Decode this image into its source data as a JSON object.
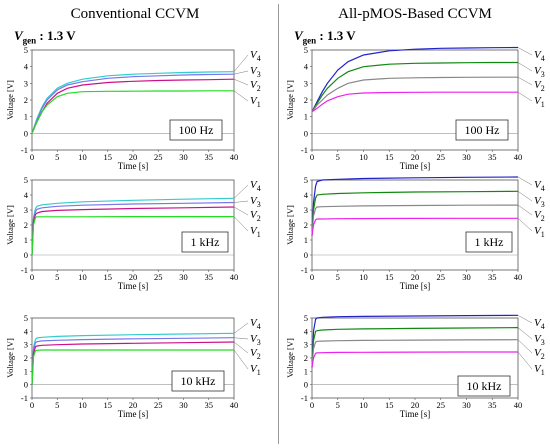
{
  "columns": [
    {
      "title": "Conventional CCVM",
      "vgen_label": "V",
      "vgen_sub": "gen",
      "vgen_value": ": 1.3 V"
    },
    {
      "title": "All-pMOS-Based CCVM",
      "vgen_label": "V",
      "vgen_sub": "gen",
      "vgen_value": ": 1.3 V"
    }
  ],
  "colors": {
    "V1": "#22dd22",
    "V2": "#cc1188",
    "V3": "#7777ee",
    "V4": "#33cccc",
    "V1_right": "#ee22ee",
    "V2_right": "#888888",
    "V3_right": "#118811",
    "V4_right": "#2222cc"
  },
  "chart_data": [
    {
      "type": "line",
      "panel": "conventional-100hz",
      "annotation": "100 Hz",
      "xlabel": "Time [s]",
      "ylabel": "Voltage [V]",
      "xlim": [
        0,
        40
      ],
      "ylim": [
        -1,
        5
      ],
      "xticks": [
        0,
        5,
        10,
        15,
        20,
        25,
        30,
        35,
        40
      ],
      "yticks": [
        -1,
        0,
        1,
        2,
        3,
        4,
        5
      ],
      "series": [
        {
          "name": "V4",
          "x": [
            0,
            1,
            2,
            3,
            5,
            7,
            10,
            15,
            20,
            25,
            30,
            35,
            40
          ],
          "y": [
            0,
            0.9,
            1.6,
            2.1,
            2.7,
            3.0,
            3.25,
            3.45,
            3.55,
            3.6,
            3.65,
            3.68,
            3.7
          ]
        },
        {
          "name": "V3",
          "x": [
            0,
            1,
            2,
            3,
            5,
            7,
            10,
            15,
            20,
            25,
            30,
            35,
            40
          ],
          "y": [
            0,
            0.8,
            1.5,
            2.0,
            2.6,
            2.9,
            3.1,
            3.3,
            3.4,
            3.45,
            3.5,
            3.53,
            3.55
          ]
        },
        {
          "name": "V2",
          "x": [
            0,
            1,
            2,
            3,
            5,
            7,
            10,
            15,
            20,
            25,
            30,
            35,
            40
          ],
          "y": [
            0,
            0.7,
            1.3,
            1.8,
            2.4,
            2.7,
            2.9,
            3.05,
            3.12,
            3.17,
            3.2,
            3.22,
            3.25
          ]
        },
        {
          "name": "V1",
          "x": [
            0,
            1,
            2,
            3,
            5,
            7,
            10,
            15,
            20,
            25,
            30,
            35,
            40
          ],
          "y": [
            0,
            0.7,
            1.3,
            1.7,
            2.2,
            2.4,
            2.5,
            2.52,
            2.53,
            2.54,
            2.54,
            2.55,
            2.55
          ]
        }
      ],
      "legend": [
        "V4",
        "V3",
        "V2",
        "V1"
      ]
    },
    {
      "type": "line",
      "panel": "conventional-1khz",
      "annotation": "1 kHz",
      "xlabel": "Time [s]",
      "ylabel": "Voltage [V]",
      "xlim": [
        0,
        40
      ],
      "ylim": [
        -1,
        5
      ],
      "xticks": [
        0,
        5,
        10,
        15,
        20,
        25,
        30,
        35,
        40
      ],
      "yticks": [
        -1,
        0,
        1,
        2,
        3,
        4,
        5
      ],
      "series": [
        {
          "name": "V4",
          "x": [
            0,
            0.3,
            0.7,
            1,
            2,
            5,
            10,
            20,
            30,
            40
          ],
          "y": [
            0,
            2.5,
            3.1,
            3.25,
            3.35,
            3.45,
            3.55,
            3.65,
            3.72,
            3.78
          ]
        },
        {
          "name": "V3",
          "x": [
            0,
            0.3,
            0.7,
            1,
            2,
            5,
            10,
            20,
            30,
            40
          ],
          "y": [
            0,
            2.4,
            2.9,
            3.05,
            3.15,
            3.25,
            3.32,
            3.4,
            3.45,
            3.5
          ]
        },
        {
          "name": "V2",
          "x": [
            0,
            0.3,
            0.7,
            1,
            2,
            5,
            10,
            20,
            30,
            40
          ],
          "y": [
            0,
            2.2,
            2.7,
            2.8,
            2.9,
            2.97,
            3.03,
            3.1,
            3.15,
            3.2
          ]
        },
        {
          "name": "V1",
          "x": [
            0,
            0.3,
            0.7,
            1,
            2,
            5,
            10,
            20,
            30,
            40
          ],
          "y": [
            0,
            2.0,
            2.5,
            2.55,
            2.55,
            2.55,
            2.55,
            2.56,
            2.56,
            2.56
          ]
        }
      ],
      "legend": [
        "V4",
        "V3",
        "V2",
        "V1"
      ]
    },
    {
      "type": "line",
      "panel": "conventional-10khz",
      "annotation": "10 kHz",
      "xlabel": "Time [s]",
      "ylabel": "Voltage [V]",
      "xlim": [
        0,
        40
      ],
      "ylim": [
        -1,
        5
      ],
      "xticks": [
        0,
        5,
        10,
        15,
        20,
        25,
        30,
        35,
        40
      ],
      "yticks": [
        -1,
        0,
        1,
        2,
        3,
        4,
        5
      ],
      "series": [
        {
          "name": "V4",
          "x": [
            0,
            0.3,
            0.7,
            1,
            2,
            5,
            10,
            20,
            30,
            40
          ],
          "y": [
            0,
            2.8,
            3.4,
            3.5,
            3.55,
            3.62,
            3.68,
            3.75,
            3.8,
            3.85
          ]
        },
        {
          "name": "V3",
          "x": [
            0,
            0.3,
            0.7,
            1,
            2,
            5,
            10,
            20,
            30,
            40
          ],
          "y": [
            0,
            2.6,
            3.15,
            3.22,
            3.28,
            3.33,
            3.38,
            3.44,
            3.48,
            3.52
          ]
        },
        {
          "name": "V2",
          "x": [
            0,
            0.3,
            0.7,
            1,
            2,
            5,
            10,
            20,
            30,
            40
          ],
          "y": [
            0,
            2.3,
            2.85,
            2.9,
            2.95,
            3.0,
            3.05,
            3.1,
            3.15,
            3.2
          ]
        },
        {
          "name": "V1",
          "x": [
            0,
            0.3,
            0.7,
            1,
            2,
            5,
            10,
            20,
            30,
            40
          ],
          "y": [
            0,
            2.1,
            2.55,
            2.58,
            2.6,
            2.6,
            2.6,
            2.6,
            2.6,
            2.6
          ]
        }
      ],
      "legend": [
        "V4",
        "V3",
        "V2",
        "V1"
      ]
    },
    {
      "type": "line",
      "panel": "all-pmos-100hz",
      "annotation": "100 Hz",
      "xlabel": "Time [s]",
      "ylabel": "Voltage [V]",
      "xlim": [
        0,
        40
      ],
      "ylim": [
        -1,
        5
      ],
      "xticks": [
        0,
        5,
        10,
        15,
        20,
        25,
        30,
        35,
        40
      ],
      "yticks": [
        -1,
        0,
        1,
        2,
        3,
        4,
        5
      ],
      "series": [
        {
          "name": "V4",
          "x": [
            0,
            1,
            2,
            3,
            5,
            7,
            10,
            15,
            20,
            25,
            30,
            35,
            40
          ],
          "y": [
            1.3,
            1.9,
            2.5,
            3.0,
            3.8,
            4.3,
            4.7,
            4.95,
            5.05,
            5.1,
            5.12,
            5.14,
            5.15
          ]
        },
        {
          "name": "V3",
          "x": [
            0,
            1,
            2,
            3,
            5,
            7,
            10,
            15,
            20,
            25,
            30,
            35,
            40
          ],
          "y": [
            1.3,
            1.8,
            2.3,
            2.7,
            3.3,
            3.7,
            4.0,
            4.15,
            4.2,
            4.22,
            4.24,
            4.25,
            4.25
          ]
        },
        {
          "name": "V2",
          "x": [
            0,
            1,
            2,
            3,
            5,
            7,
            10,
            15,
            20,
            25,
            30,
            35,
            40
          ],
          "y": [
            1.3,
            1.7,
            2.0,
            2.3,
            2.7,
            3.0,
            3.2,
            3.3,
            3.33,
            3.35,
            3.36,
            3.37,
            3.37
          ]
        },
        {
          "name": "V1",
          "x": [
            0,
            1,
            2,
            3,
            5,
            7,
            10,
            15,
            20,
            25,
            30,
            35,
            40
          ],
          "y": [
            1.3,
            1.5,
            1.75,
            1.95,
            2.2,
            2.35,
            2.42,
            2.45,
            2.46,
            2.47,
            2.47,
            2.47,
            2.47
          ]
        }
      ],
      "legend": [
        "V4",
        "V3",
        "V2",
        "V1"
      ]
    },
    {
      "type": "line",
      "panel": "all-pmos-1khz",
      "annotation": "1 kHz",
      "xlabel": "Time [s]",
      "ylabel": "Voltage [V]",
      "xlim": [
        0,
        40
      ],
      "ylim": [
        -1,
        5
      ],
      "xticks": [
        0,
        5,
        10,
        15,
        20,
        25,
        30,
        35,
        40
      ],
      "yticks": [
        -1,
        0,
        1,
        2,
        3,
        4,
        5
      ],
      "series": [
        {
          "name": "V4",
          "x": [
            0,
            0.3,
            0.7,
            1,
            2,
            5,
            10,
            20,
            30,
            40
          ],
          "y": [
            1.3,
            3.5,
            4.6,
            4.9,
            5.0,
            5.05,
            5.1,
            5.15,
            5.18,
            5.2
          ]
        },
        {
          "name": "V3",
          "x": [
            0,
            0.3,
            0.7,
            1,
            2,
            5,
            10,
            20,
            30,
            40
          ],
          "y": [
            1.3,
            3.0,
            3.8,
            4.0,
            4.05,
            4.1,
            4.15,
            4.2,
            4.22,
            4.25
          ]
        },
        {
          "name": "V2",
          "x": [
            0,
            0.3,
            0.7,
            1,
            2,
            5,
            10,
            20,
            30,
            40
          ],
          "y": [
            1.3,
            2.6,
            3.1,
            3.2,
            3.22,
            3.25,
            3.27,
            3.3,
            3.32,
            3.33
          ]
        },
        {
          "name": "V1",
          "x": [
            0,
            0.3,
            0.7,
            1,
            2,
            5,
            10,
            20,
            30,
            40
          ],
          "y": [
            1.3,
            2.0,
            2.35,
            2.4,
            2.4,
            2.42,
            2.43,
            2.44,
            2.45,
            2.45
          ]
        }
      ],
      "legend": [
        "V4",
        "V3",
        "V2",
        "V1"
      ]
    },
    {
      "type": "line",
      "panel": "all-pmos-10khz",
      "annotation": "10 kHz",
      "xlabel": "Time [s]",
      "ylabel": "Voltage [V]",
      "xlim": [
        0,
        40
      ],
      "ylim": [
        -1,
        5
      ],
      "xticks": [
        0,
        5,
        10,
        15,
        20,
        25,
        30,
        35,
        40
      ],
      "yticks": [
        -1,
        0,
        1,
        2,
        3,
        4,
        5
      ],
      "series": [
        {
          "name": "V4",
          "x": [
            0,
            0.3,
            0.7,
            1,
            2,
            5,
            10,
            20,
            30,
            40
          ],
          "y": [
            1.3,
            4.0,
            4.9,
            5.0,
            5.05,
            5.1,
            5.12,
            5.15,
            5.18,
            5.2
          ]
        },
        {
          "name": "V3",
          "x": [
            0,
            0.3,
            0.7,
            1,
            2,
            5,
            10,
            20,
            30,
            40
          ],
          "y": [
            1.3,
            3.3,
            4.0,
            4.05,
            4.1,
            4.15,
            4.18,
            4.22,
            4.25,
            4.28
          ]
        },
        {
          "name": "V2",
          "x": [
            0,
            0.3,
            0.7,
            1,
            2,
            5,
            10,
            20,
            30,
            40
          ],
          "y": [
            1.3,
            2.7,
            3.2,
            3.25,
            3.27,
            3.3,
            3.32,
            3.34,
            3.36,
            3.37
          ]
        },
        {
          "name": "V1",
          "x": [
            0,
            0.3,
            0.7,
            1,
            2,
            5,
            10,
            20,
            30,
            40
          ],
          "y": [
            1.3,
            2.0,
            2.35,
            2.38,
            2.4,
            2.42,
            2.43,
            2.44,
            2.45,
            2.45
          ]
        }
      ],
      "legend": [
        "V4",
        "V3",
        "V2",
        "V1"
      ]
    }
  ]
}
